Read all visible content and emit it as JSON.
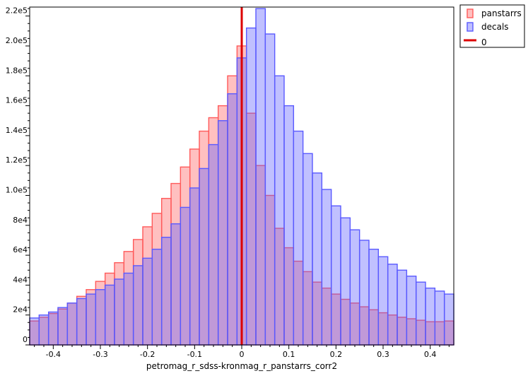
{
  "chart_data": {
    "type": "bar",
    "title": "",
    "xlabel": "petromag_r_sdss-kronmag_r_panstarrs_corr2",
    "ylabel": "",
    "xlim": [
      -0.45,
      0.45
    ],
    "ylim": [
      0,
      226000
    ],
    "x_ticks": [
      -0.4,
      -0.3,
      -0.2,
      -0.1,
      0,
      0.1,
      0.2,
      0.3,
      0.4
    ],
    "x_tick_labels": [
      "-0.4",
      "-0.3",
      "-0.2",
      "-0.1",
      "0",
      "0.1",
      "0.2",
      "0.3",
      "0.4"
    ],
    "y_ticks": [
      0,
      20000,
      40000,
      60000,
      80000,
      100000,
      120000,
      140000,
      160000,
      180000,
      200000,
      220000
    ],
    "y_tick_labels": [
      "0",
      "2e4",
      "4e4",
      "6e4",
      "8e4",
      "1.0e5",
      "1.2e5",
      "1.4e5",
      "1.6e5",
      "1.8e5",
      "2.0e5",
      "2.2e5"
    ],
    "bin_edges_start": -0.45,
    "bin_width": 0.02,
    "series": [
      {
        "name": "panstarrs",
        "color": "#ff5a5a",
        "values": [
          16000,
          18500,
          21000,
          24000,
          28000,
          32500,
          37000,
          42500,
          48000,
          55000,
          62500,
          70500,
          79000,
          88000,
          98000,
          108000,
          119000,
          131000,
          143000,
          152000,
          160000,
          180000,
          200000,
          155000,
          120000,
          100000,
          78000,
          65000,
          56000,
          49000,
          42000,
          38000,
          34000,
          30500,
          28000,
          25500,
          23500,
          21500,
          20000,
          18500,
          17500,
          16500,
          15500,
          15500,
          16000
        ]
      },
      {
        "name": "decals",
        "color": "#5a5aff",
        "values": [
          18000,
          20000,
          22000,
          25000,
          28000,
          31000,
          34000,
          37000,
          40000,
          44000,
          48000,
          53000,
          58000,
          64000,
          72000,
          81000,
          92000,
          105000,
          118000,
          134000,
          150000,
          168000,
          192000,
          212000,
          225000,
          208000,
          180000,
          160000,
          143000,
          128000,
          115000,
          104000,
          93000,
          85000,
          77000,
          70000,
          64000,
          59000,
          54000,
          50000,
          46000,
          42000,
          38000,
          36000,
          34000
        ]
      }
    ],
    "reference_line": {
      "name": "0",
      "x": 0,
      "color": "#dd0000"
    },
    "legend_position": "outside-top-right",
    "grid": false
  }
}
